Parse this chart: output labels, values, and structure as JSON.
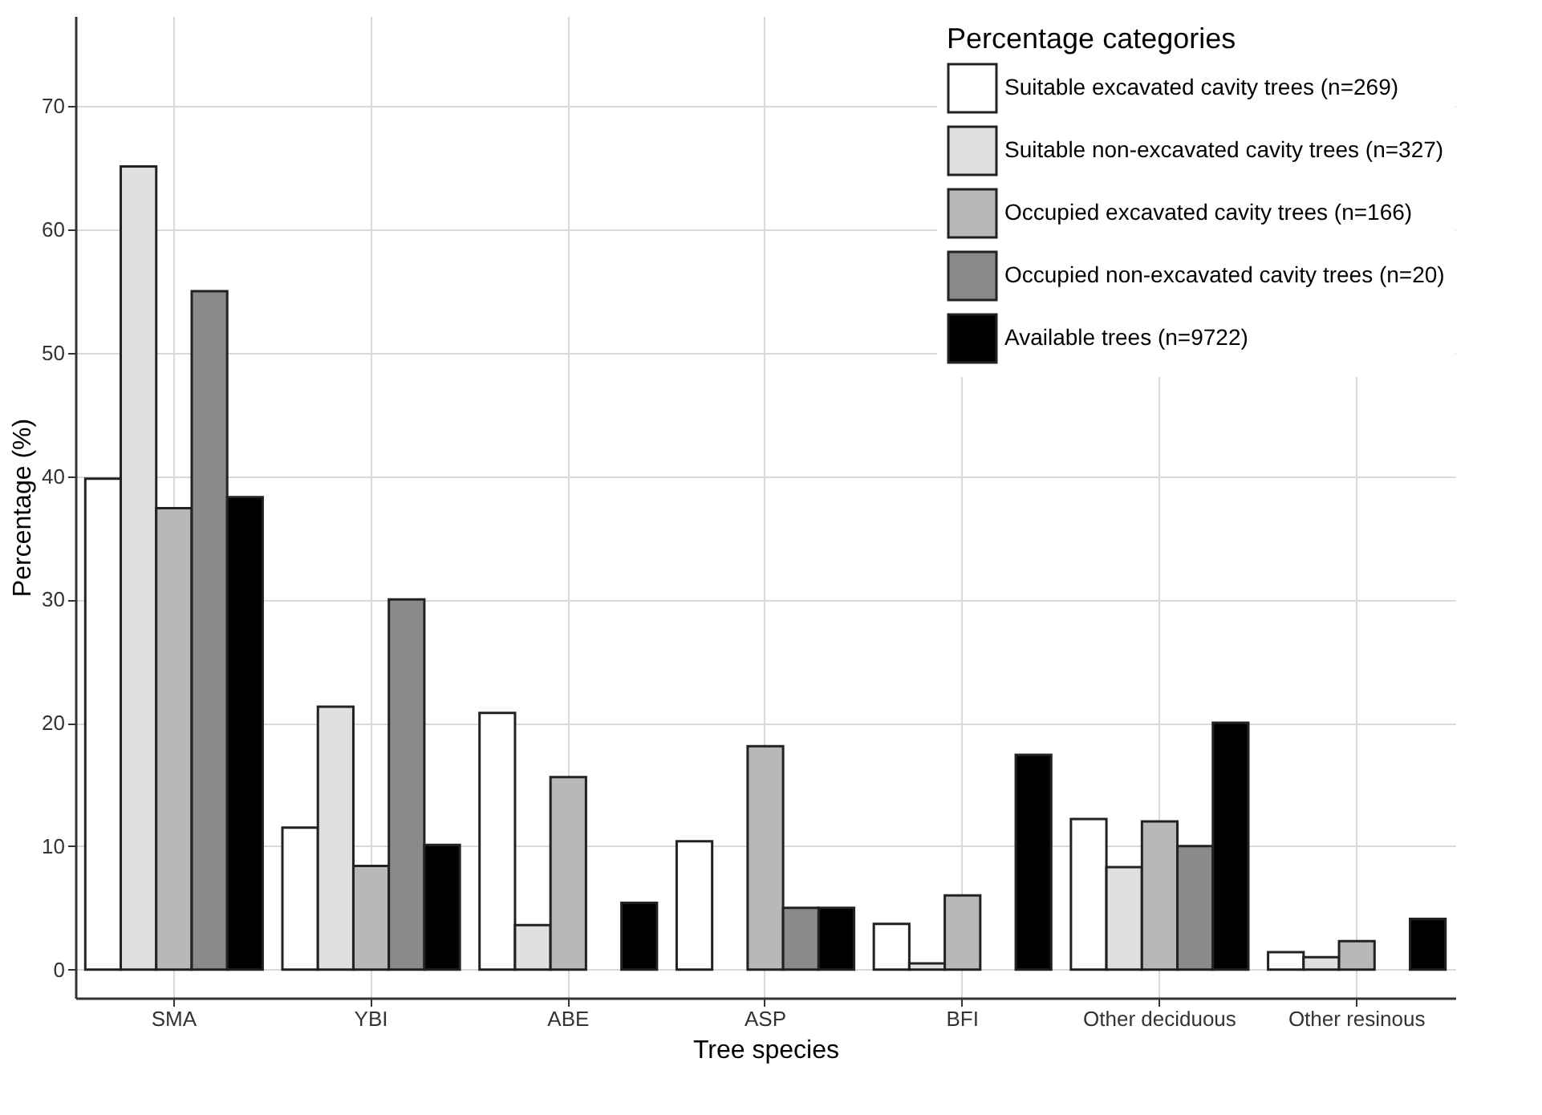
{
  "chart_data": {
    "type": "bar",
    "xlabel": "Tree species",
    "ylabel": "Percentage (%)",
    "legend_title": "Percentage categories",
    "categories": [
      "SMA",
      "YBI",
      "ABE",
      "ASP",
      "BFI",
      "Other deciduous",
      "Other resinous"
    ],
    "series": [
      {
        "name": "Suitable excavated cavity trees (n=269)",
        "color": "#ffffff",
        "values": [
          39.8,
          11.5,
          20.8,
          10.4,
          3.7,
          12.2,
          1.4
        ]
      },
      {
        "name": "Suitable non-excavated cavity trees (n=327)",
        "color": "#e0e0e0",
        "values": [
          65.1,
          21.3,
          3.6,
          0,
          0.5,
          8.3,
          1.0
        ]
      },
      {
        "name": "Occupied excavated cavity trees (n=166)",
        "color": "#b8b8b8",
        "values": [
          37.4,
          8.4,
          15.6,
          18.1,
          6.0,
          12.0,
          2.3
        ]
      },
      {
        "name": "Occupied non-excavated cavity trees (n=20)",
        "color": "#8a8a8a",
        "values": [
          55,
          30,
          0,
          5,
          0,
          10,
          0
        ]
      },
      {
        "name": "Available trees (n=9722)",
        "color": "#000000",
        "values": [
          38.3,
          10.1,
          5.4,
          5,
          17.4,
          20,
          4.1
        ]
      }
    ],
    "ylim": [
      -2.3,
      77.3
    ],
    "yticks": [
      0,
      10,
      20,
      30,
      40,
      50,
      60,
      70
    ],
    "grid": true,
    "legend": "top right"
  }
}
